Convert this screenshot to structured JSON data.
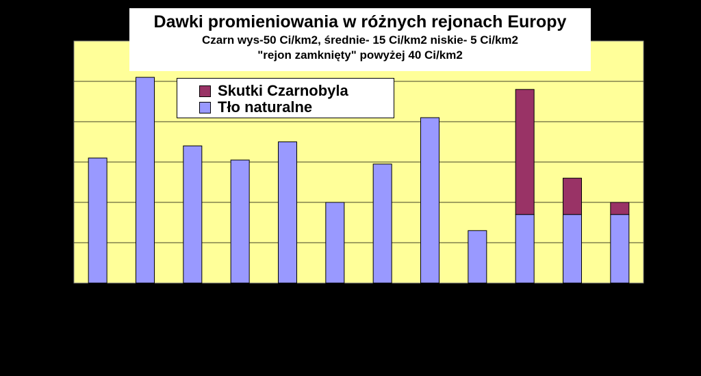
{
  "chart_data": {
    "type": "bar",
    "stacked": true,
    "title": "Dawki promieniowania w różnych rejonach Europy",
    "subtitle_lines": [
      "Czarn wys-50 Ci/km2, średnie- 15 Ci/km2 niskie- 5 Ci/km2",
      "\"rejon zamknięty\" powyżej 40 Ci/km2"
    ],
    "ylim": [
      0,
      6
    ],
    "grid": true,
    "legend_position": "top-left",
    "series": [
      {
        "name": "Tło naturalne",
        "color": "#9999ff",
        "values": [
          3.1,
          5.1,
          3.4,
          3.05,
          3.5,
          2.0,
          2.95,
          4.1,
          1.3,
          1.7,
          1.7,
          1.7
        ]
      },
      {
        "name": "Skutki Czarnobyla",
        "color": "#993366",
        "values": [
          0,
          0,
          0,
          0,
          0,
          0,
          0,
          0,
          0,
          3.1,
          0.9,
          0.3
        ]
      }
    ],
    "legend_order": [
      "Skutki Czarnobyla",
      "Tło naturalne"
    ]
  },
  "style": {
    "plot_background": "#ffff99",
    "background": "#000000",
    "gridline_color": "#000000"
  }
}
